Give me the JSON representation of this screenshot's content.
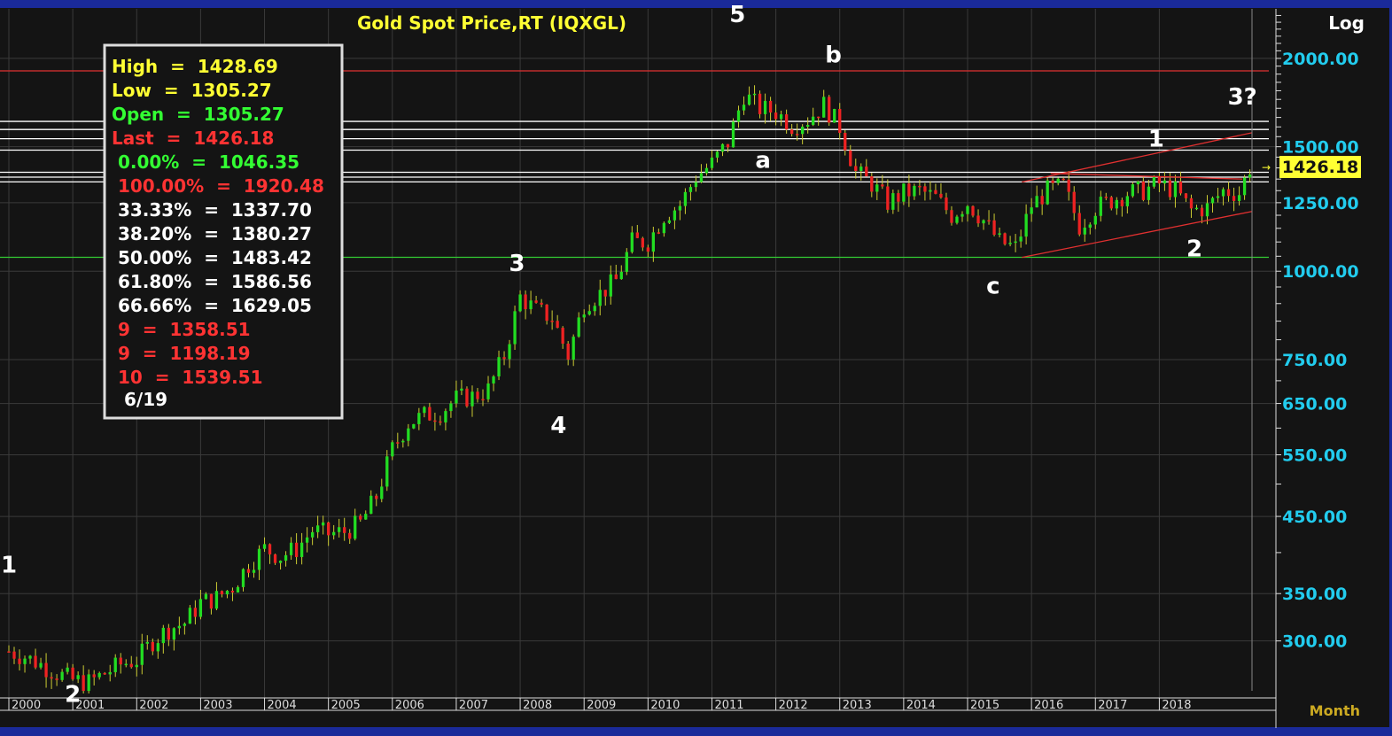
{
  "chart_data": {
    "type": "candlestick",
    "title": "Gold  Spot  Price,RT  (IQXGL)",
    "scale_label": "Log",
    "period_label": "Month",
    "x_axis": {
      "type": "time",
      "tick_labels": [
        "2000",
        "2001",
        "2002",
        "2003",
        "2004",
        "2005",
        "2006",
        "2007",
        "2008",
        "2009",
        "2010",
        "2011",
        "2012",
        "2013",
        "2014",
        "2015",
        "2016",
        "2017",
        "2018"
      ],
      "range": [
        2000.0,
        2019.45
      ]
    },
    "y_axis": {
      "scale": "log",
      "range": [
        255,
        2350
      ],
      "tick_labels": [
        "2000.00",
        "1500.00",
        "1250.00",
        "1000.00",
        "750.00",
        "650.00",
        "550.00",
        "450.00",
        "350.00",
        "300.00"
      ],
      "tick_values": [
        2000,
        1500,
        1250,
        1000,
        750,
        650,
        550,
        450,
        350,
        300
      ],
      "last_price_label": "1426.18"
    },
    "candles_close_path": [
      [
        2000.0,
        290
      ],
      [
        2000.25,
        285
      ],
      [
        2000.5,
        278
      ],
      [
        2000.75,
        270
      ],
      [
        2001.0,
        264
      ],
      [
        2001.25,
        262
      ],
      [
        2001.5,
        270
      ],
      [
        2001.75,
        278
      ],
      [
        2002.0,
        282
      ],
      [
        2002.25,
        300
      ],
      [
        2002.5,
        312
      ],
      [
        2002.75,
        318
      ],
      [
        2003.0,
        340
      ],
      [
        2003.25,
        345
      ],
      [
        2003.5,
        358
      ],
      [
        2003.75,
        385
      ],
      [
        2004.0,
        405
      ],
      [
        2004.25,
        395
      ],
      [
        2004.5,
        405
      ],
      [
        2004.75,
        430
      ],
      [
        2005.0,
        425
      ],
      [
        2005.25,
        428
      ],
      [
        2005.5,
        440
      ],
      [
        2005.75,
        480
      ],
      [
        2006.0,
        560
      ],
      [
        2006.25,
        610
      ],
      [
        2006.5,
        625
      ],
      [
        2006.75,
        632
      ],
      [
        2007.0,
        660
      ],
      [
        2007.25,
        665
      ],
      [
        2007.5,
        680
      ],
      [
        2007.75,
        760
      ],
      [
        2008.0,
        920
      ],
      [
        2008.25,
        880
      ],
      [
        2008.5,
        860
      ],
      [
        2008.75,
        760
      ],
      [
        2009.0,
        900
      ],
      [
        2009.25,
        930
      ],
      [
        2009.5,
        970
      ],
      [
        2009.75,
        1100
      ],
      [
        2010.0,
        1100
      ],
      [
        2010.25,
        1200
      ],
      [
        2010.5,
        1240
      ],
      [
        2010.75,
        1360
      ],
      [
        2011.0,
        1420
      ],
      [
        2011.25,
        1520
      ],
      [
        2011.5,
        1780
      ],
      [
        2011.75,
        1700
      ],
      [
        2012.0,
        1680
      ],
      [
        2012.25,
        1610
      ],
      [
        2012.5,
        1640
      ],
      [
        2012.75,
        1720
      ],
      [
        2013.0,
        1600
      ],
      [
        2013.25,
        1380
      ],
      [
        2013.5,
        1330
      ],
      [
        2013.75,
        1250
      ],
      [
        2014.0,
        1290
      ],
      [
        2014.25,
        1300
      ],
      [
        2014.5,
        1270
      ],
      [
        2014.75,
        1200
      ],
      [
        2015.0,
        1250
      ],
      [
        2015.25,
        1180
      ],
      [
        2015.5,
        1100
      ],
      [
        2015.75,
        1080
      ],
      [
        2016.0,
        1240
      ],
      [
        2016.25,
        1300
      ],
      [
        2016.5,
        1320
      ],
      [
        2016.75,
        1160
      ],
      [
        2017.0,
        1230
      ],
      [
        2017.25,
        1260
      ],
      [
        2017.5,
        1290
      ],
      [
        2017.75,
        1300
      ],
      [
        2018.0,
        1330
      ],
      [
        2018.25,
        1300
      ],
      [
        2018.5,
        1220
      ],
      [
        2018.75,
        1230
      ],
      [
        2019.0,
        1300
      ],
      [
        2019.25,
        1290
      ],
      [
        2019.45,
        1426
      ]
    ],
    "horizontal_lines": [
      {
        "value": 1920.48,
        "color": "#e03030"
      },
      {
        "value": 1629.05,
        "color": "#ffffff"
      },
      {
        "value": 1586.56,
        "color": "#ffffff"
      },
      {
        "value": 1539.51,
        "color": "#ffffff"
      },
      {
        "value": 1483.42,
        "color": "#ffffff"
      },
      {
        "value": 1380.27,
        "color": "#ffffff"
      },
      {
        "value": 1358.51,
        "color": "#ffffff"
      },
      {
        "value": 1337.7,
        "color": "#ffffff"
      },
      {
        "value": 1046.35,
        "color": "#33cc33"
      }
    ],
    "channel_lines": [
      {
        "from": [
          2015.85,
          1337
        ],
        "to": [
          2019.45,
          1570
        ],
        "color": "#e03030"
      },
      {
        "from": [
          2015.85,
          1046
        ],
        "to": [
          2019.45,
          1215
        ],
        "color": "#e03030"
      },
      {
        "from": [
          2016.3,
          1375
        ],
        "to": [
          2019.3,
          1350
        ],
        "color": "#e03030"
      }
    ],
    "wave_labels": [
      {
        "text": "1",
        "x": 2000.0,
        "y": 375
      },
      {
        "text": "2",
        "x": 2001.0,
        "y": 246
      },
      {
        "text": "3",
        "x": 2007.95,
        "y": 1000
      },
      {
        "text": "4",
        "x": 2008.6,
        "y": 590
      },
      {
        "text": "5",
        "x": 2011.4,
        "y": 2250
      },
      {
        "text": "a",
        "x": 2011.8,
        "y": 1400
      },
      {
        "text": "b",
        "x": 2012.9,
        "y": 1975
      },
      {
        "text": "c",
        "x": 2015.4,
        "y": 930
      },
      {
        "text": "1",
        "x": 2017.95,
        "y": 1500
      },
      {
        "text": "2",
        "x": 2018.55,
        "y": 1050
      },
      {
        "text": "3?",
        "x": 2019.3,
        "y": 1720
      }
    ],
    "info_box": [
      {
        "label": "High",
        "eq": "=",
        "value": "1428.69",
        "color": "#ffff33"
      },
      {
        "label": "Low",
        "eq": "=",
        "value": "1305.27",
        "color": "#ffff33"
      },
      {
        "label": "Open",
        "eq": "=",
        "value": "1305.27",
        "color": "#33ff33"
      },
      {
        "label": "Last",
        "eq": "=",
        "value": "1426.18",
        "color": "#ff3333"
      },
      {
        "label": " 0.00%",
        "eq": "=",
        "value": "1046.35",
        "color": "#33ff33"
      },
      {
        "label": " 100.00%",
        "eq": "=",
        "value": "1920.48",
        "color": "#ff3333"
      },
      {
        "label": " 33.33%",
        "eq": "=",
        "value": "1337.70",
        "color": "#ffffff"
      },
      {
        "label": " 38.20%",
        "eq": "=",
        "value": "1380.27",
        "color": "#ffffff"
      },
      {
        "label": " 50.00%",
        "eq": "=",
        "value": "1483.42",
        "color": "#ffffff"
      },
      {
        "label": " 61.80%",
        "eq": "=",
        "value": "1586.56",
        "color": "#ffffff"
      },
      {
        "label": " 66.66%",
        "eq": "=",
        "value": "1629.05",
        "color": "#ffffff"
      },
      {
        "label": " 9",
        "eq": "=",
        "value": "1358.51",
        "color": "#ff3333"
      },
      {
        "label": " 9",
        "eq": "=",
        "value": "1198.19",
        "color": "#ff3333"
      },
      {
        "label": " 10",
        "eq": "=",
        "value": "1539.51",
        "color": "#ff3333"
      }
    ],
    "info_box_date": "6/19",
    "colors": {
      "background": "#141414",
      "up_candle": "#22dd22",
      "down_candle": "#ee2222",
      "wick": "#cccc33",
      "title": "#ffff33",
      "axis_labels": "#22ccee",
      "grid": "#3a3a3a",
      "border": "#1a2a9a"
    }
  }
}
